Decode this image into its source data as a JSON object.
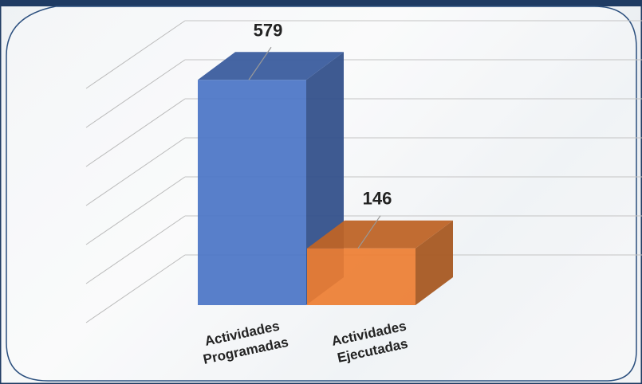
{
  "chart_data": {
    "type": "bar3d",
    "categories": [
      "Actividades Programadas",
      "Actividades Ejecutadas"
    ],
    "values": [
      579,
      146
    ],
    "colors": [
      "#4a74c6",
      "#ed7d31"
    ],
    "ylim": [
      0,
      600
    ]
  }
}
